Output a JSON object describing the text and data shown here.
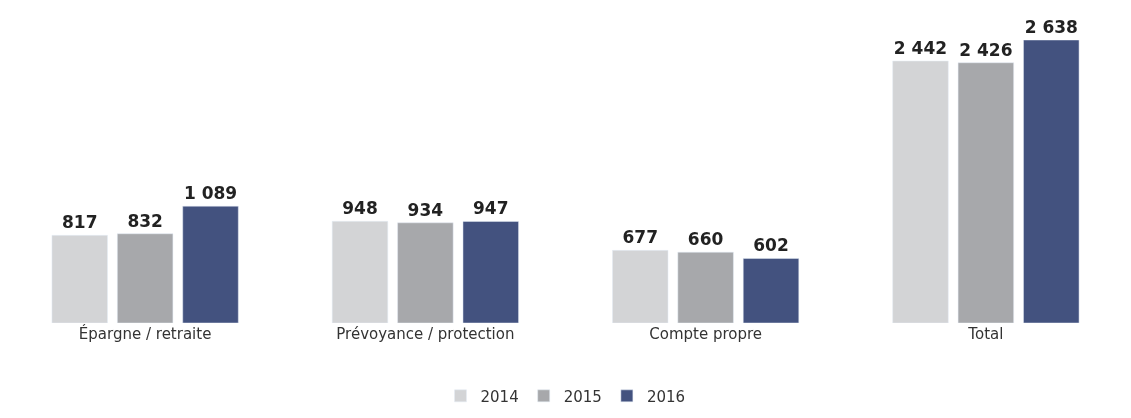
{
  "chart_data": {
    "type": "bar",
    "categories": [
      "Épargne / retraite",
      "Prévoyance / protection",
      "Compte propre",
      "Total"
    ],
    "series": [
      {
        "name": "2014",
        "color": "#d3d4d6",
        "values": [
          817,
          948,
          677,
          2442
        ],
        "value_labels": [
          "817",
          "948",
          "677",
          "2 442"
        ]
      },
      {
        "name": "2015",
        "color": "#a7a8ab",
        "values": [
          832,
          934,
          660,
          2426
        ],
        "value_labels": [
          "832",
          "934",
          "660",
          "2 426"
        ]
      },
      {
        "name": "2016",
        "color": "#43527f",
        "values": [
          1089,
          947,
          602,
          2638
        ],
        "value_labels": [
          "1 089",
          "947",
          "602",
          "2 638"
        ]
      }
    ],
    "legend": "bottom"
  }
}
